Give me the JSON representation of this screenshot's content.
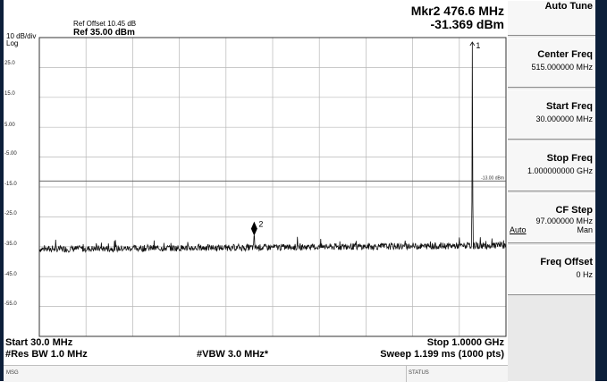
{
  "header": {
    "scale_label": "10 dB/div",
    "scale_type": "Log",
    "ref_offset": "Ref Offset 10.45 dB",
    "ref_level": "Ref 35.00 dBm",
    "marker_readout_freq": "Mkr2 476.6 MHz",
    "marker_readout_amp": "-31.369 dBm"
  },
  "plot": {
    "y_tick_labels": [
      "25.0",
      "15.0",
      "5.00",
      "-5.00",
      "-15.0",
      "-25.0",
      "-35.0",
      "-45.0",
      "-55.0"
    ],
    "limit_line_label": "-13.00 dBm",
    "marker1_label": "1",
    "marker2_label": "2"
  },
  "footer": {
    "start": "Start 30.0 MHz",
    "stop": "Stop 1.0000 GHz",
    "rbw": "#Res BW 1.0 MHz",
    "vbw": "#VBW 3.0 MHz*",
    "sweep": "Sweep  1.199 ms (1000 pts)"
  },
  "statusbar": {
    "msg": "MSG",
    "status": "STATUS"
  },
  "softkeys": {
    "auto_tune": "Auto Tune",
    "center_freq_label": "Center Freq",
    "center_freq_value": "515.000000 MHz",
    "start_freq_label": "Start Freq",
    "start_freq_value": "30.000000 MHz",
    "stop_freq_label": "Stop Freq",
    "stop_freq_value": "1.000000000 GHz",
    "cf_step_label": "CF Step",
    "cf_step_value": "97.000000 MHz",
    "cf_step_auto": "Auto",
    "cf_step_man": "Man",
    "freq_offset_label": "Freq Offset",
    "freq_offset_value": "0 Hz"
  },
  "chart_data": {
    "type": "line",
    "x_range_mhz": [
      30,
      1000
    ],
    "y_range_dbm": [
      -65,
      35
    ],
    "y_ticks": [
      25,
      15,
      5,
      -5,
      -15,
      -25,
      -35,
      -45,
      -55
    ],
    "noise_floor_dbm": -35,
    "limit_line_dbm": -13,
    "series": [
      {
        "points": [
          [
            30,
            -35.5
          ],
          [
            200,
            -35.2
          ],
          [
            476.6,
            -31.4
          ],
          [
            600,
            -34.8
          ],
          [
            925,
            -34.6
          ],
          [
            930,
            33.5
          ],
          [
            935,
            -34.5
          ],
          [
            1000,
            -34.0
          ]
        ]
      }
    ],
    "markers": [
      {
        "id": "1",
        "x_mhz": 930,
        "y_dbm": 33.5
      },
      {
        "id": "2",
        "x_mhz": 476.6,
        "y_dbm": -31.369
      }
    ]
  }
}
